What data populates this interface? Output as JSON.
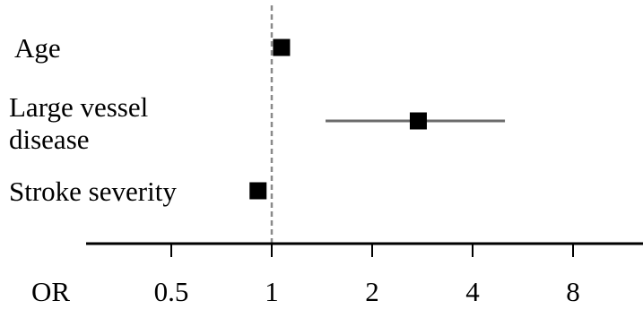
{
  "chart_data": {
    "type": "forest",
    "xlabel": "OR",
    "x_scale": "log2",
    "xlim": [
      0.25,
      11
    ],
    "ticks": [
      0.5,
      1,
      2,
      4,
      8
    ],
    "tick_labels": [
      "0.5",
      "1",
      "2",
      "4",
      "8"
    ],
    "reference_line": 1,
    "rows": [
      {
        "label_lines": [
          "Age"
        ],
        "or": 1.07,
        "ci_low": null,
        "ci_high": null
      },
      {
        "label_lines": [
          "Large vessel",
          "disease"
        ],
        "or": 2.75,
        "ci_low": 1.45,
        "ci_high": 5.0
      },
      {
        "label_lines": [
          "Stroke severity"
        ],
        "or": 0.91,
        "ci_low": null,
        "ci_high": null
      }
    ]
  },
  "colors": {
    "marker": "#000000",
    "ci_line": "#6b6b6b",
    "reference_line": "#8a8a8a",
    "axis": "#000000"
  }
}
